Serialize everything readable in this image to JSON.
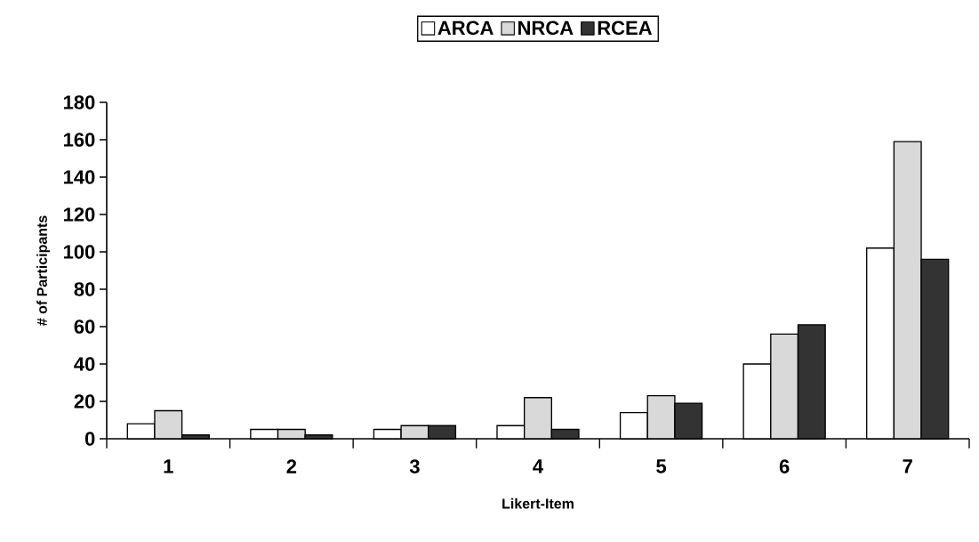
{
  "chart_data": {
    "type": "bar",
    "xlabel": "Likert-Item",
    "ylabel": "# of Participants",
    "categories": [
      "1",
      "2",
      "3",
      "4",
      "5",
      "6",
      "7"
    ],
    "series": [
      {
        "name": "ARCA",
        "color": "#ffffff",
        "values": [
          8,
          5,
          5,
          7,
          14,
          40,
          102
        ]
      },
      {
        "name": "NRCA",
        "color": "#d9d9d9",
        "values": [
          15,
          5,
          7,
          22,
          23,
          56,
          159
        ]
      },
      {
        "name": "RCEA",
        "color": "#333333",
        "values": [
          2,
          2,
          7,
          5,
          19,
          61,
          96
        ]
      }
    ],
    "ylim": [
      0,
      180
    ],
    "yticks": [
      0,
      20,
      40,
      60,
      80,
      100,
      120,
      140,
      160,
      180
    ],
    "grid": false,
    "legend": "top"
  }
}
